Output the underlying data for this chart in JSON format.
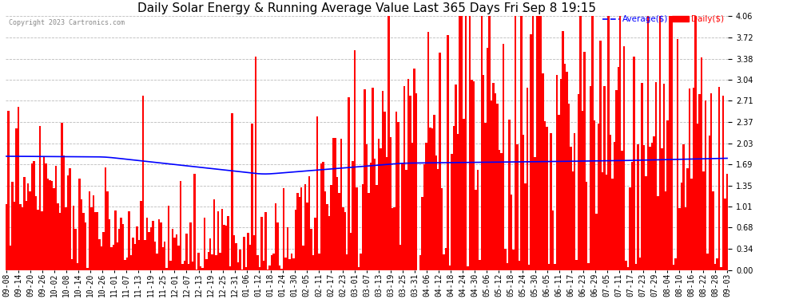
{
  "title": "Daily Solar Energy & Running Average Value Last 365 Days Fri Sep 8 19:15",
  "copyright": "Copyright 2023 Cartronics.com",
  "ylabel_right_ticks": [
    0.0,
    0.34,
    0.68,
    1.01,
    1.35,
    1.69,
    2.03,
    2.37,
    2.71,
    3.04,
    3.38,
    3.72,
    4.06
  ],
  "bar_color": "#FF0000",
  "avg_color": "#0000FF",
  "bg_color": "#FFFFFF",
  "grid_color": "#BBBBBB",
  "title_fontsize": 11,
  "tick_fontsize": 7,
  "legend_avg_label": "Average($)",
  "legend_daily_label": "Daily($)",
  "x_labels": [
    "09-08",
    "09-14",
    "09-20",
    "09-26",
    "10-02",
    "10-08",
    "10-14",
    "10-20",
    "10-26",
    "11-01",
    "11-07",
    "11-13",
    "11-19",
    "11-25",
    "12-01",
    "12-07",
    "12-13",
    "12-19",
    "12-25",
    "12-31",
    "01-06",
    "01-12",
    "01-18",
    "01-24",
    "01-30",
    "02-05",
    "02-11",
    "02-17",
    "02-23",
    "03-01",
    "03-07",
    "03-13",
    "03-19",
    "03-25",
    "03-31",
    "04-06",
    "04-12",
    "04-18",
    "04-24",
    "04-30",
    "05-06",
    "05-12",
    "05-18",
    "05-24",
    "05-30",
    "06-05",
    "06-11",
    "06-17",
    "06-23",
    "06-29",
    "07-05",
    "07-11",
    "07-17",
    "07-23",
    "07-29",
    "08-04",
    "08-10",
    "08-16",
    "08-22",
    "08-28",
    "09-03"
  ]
}
